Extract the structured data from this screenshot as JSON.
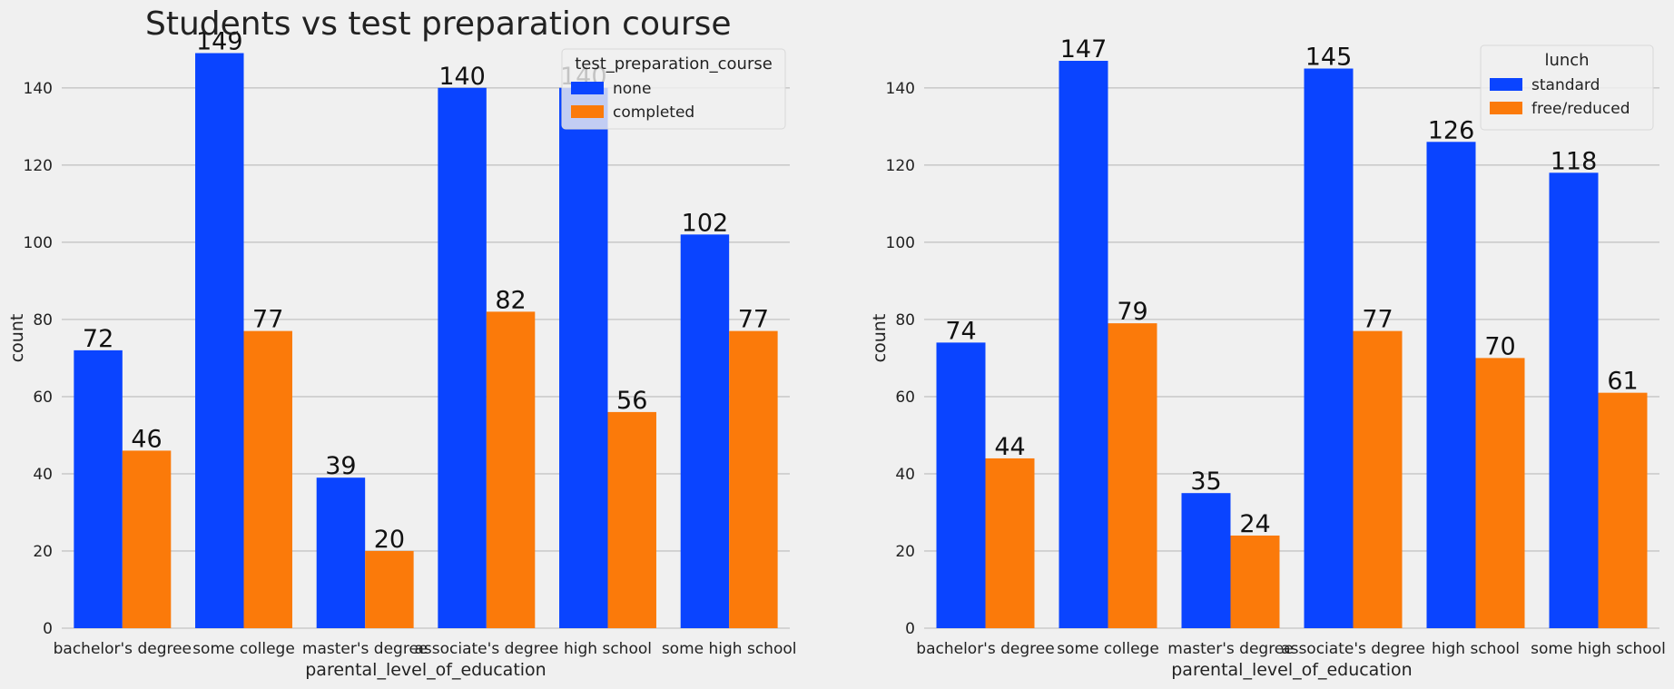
{
  "chart_data": [
    {
      "type": "bar",
      "title": "Students vs test preparation course",
      "xlabel": "parental_level_of_education",
      "ylabel": "count",
      "categories": [
        "bachelor's degree",
        "some college",
        "master's degree",
        "associate's degree",
        "high school",
        "some high school"
      ],
      "ylim": [
        0,
        155
      ],
      "yticks": [
        0,
        20,
        40,
        60,
        80,
        100,
        120,
        140
      ],
      "grid": true,
      "legend_title": "test_preparation_course",
      "legend_position": "top-right",
      "series": [
        {
          "name": "none",
          "color": "#0a44ff",
          "values": [
            72,
            149,
            39,
            140,
            140,
            102
          ]
        },
        {
          "name": "completed",
          "color": "#fb7a0a",
          "values": [
            46,
            77,
            20,
            82,
            56,
            77
          ]
        }
      ]
    },
    {
      "type": "bar",
      "title": "",
      "xlabel": "parental_level_of_education",
      "ylabel": "count",
      "categories": [
        "bachelor's degree",
        "some college",
        "master's degree",
        "associate's degree",
        "high school",
        "some high school"
      ],
      "ylim": [
        0,
        155
      ],
      "yticks": [
        0,
        20,
        40,
        60,
        80,
        100,
        120,
        140
      ],
      "grid": true,
      "legend_title": "lunch",
      "legend_position": "top-right",
      "series": [
        {
          "name": "standard",
          "color": "#0a44ff",
          "values": [
            74,
            147,
            35,
            145,
            126,
            118
          ]
        },
        {
          "name": "free/reduced",
          "color": "#fb7a0a",
          "values": [
            44,
            79,
            24,
            77,
            70,
            61
          ]
        }
      ]
    }
  ]
}
